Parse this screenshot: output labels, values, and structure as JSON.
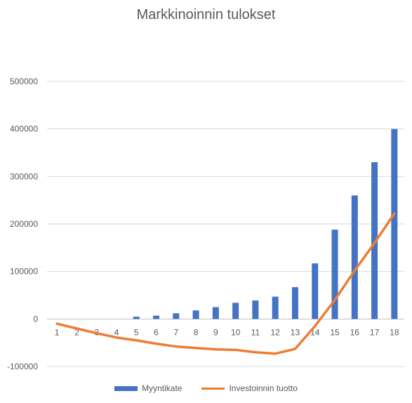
{
  "chart_data": {
    "type": "bar",
    "title": "Markkinoinnin tulokset",
    "categories": [
      "1",
      "2",
      "3",
      "4",
      "5",
      "6",
      "7",
      "8",
      "9",
      "10",
      "11",
      "12",
      "13",
      "14",
      "15",
      "16",
      "17",
      "18"
    ],
    "series": [
      {
        "name": "Myyntikate",
        "type": "bar",
        "color": "#4472C4",
        "values": [
          0,
          0,
          0,
          0,
          5000,
          7000,
          12000,
          18000,
          25000,
          34000,
          39000,
          47000,
          67000,
          117000,
          188000,
          260000,
          330000,
          400000
        ]
      },
      {
        "name": "Investoinnin tuotto",
        "type": "line",
        "color": "#ED7D31",
        "values": [
          -10000,
          -20000,
          -30000,
          -39000,
          -45000,
          -52000,
          -58000,
          -61000,
          -64000,
          -65000,
          -70000,
          -73000,
          -63000,
          -15000,
          40000,
          102000,
          160000,
          222000
        ]
      }
    ],
    "ylim": [
      -100000,
      500000
    ],
    "yticks": [
      -100000,
      0,
      100000,
      200000,
      300000,
      400000,
      500000
    ],
    "ytick_labels": [
      "-100000",
      "0",
      "100000",
      "200000",
      "300000",
      "400000",
      "500000"
    ],
    "grid": true,
    "legend_position": "bottom"
  }
}
